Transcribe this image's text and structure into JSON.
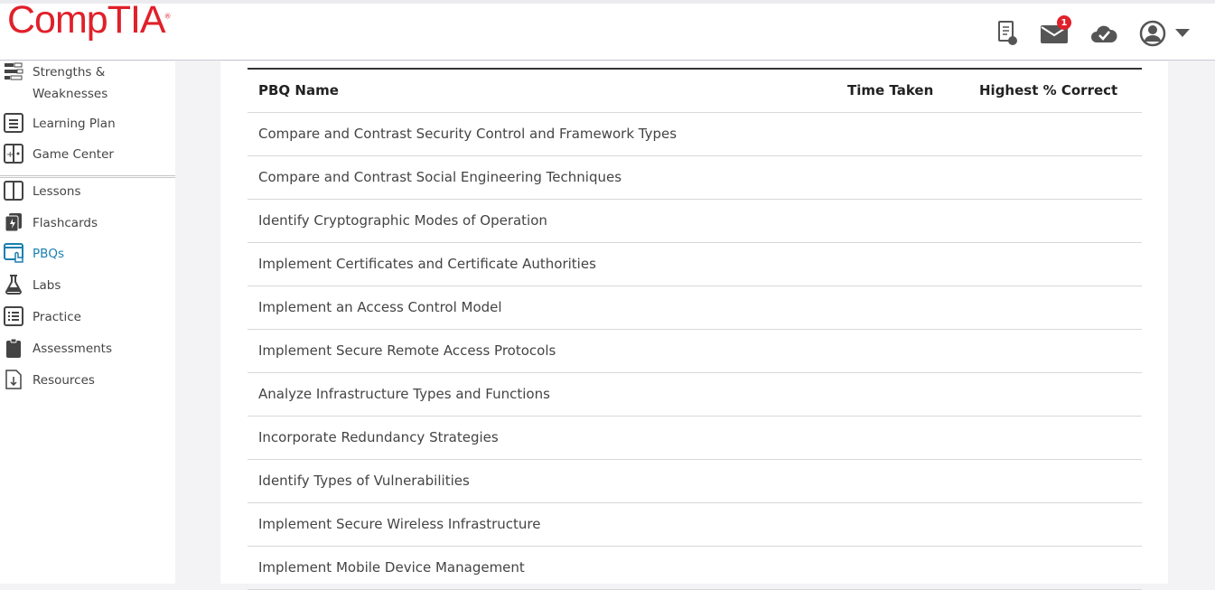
{
  "brand": {
    "logo": "CompTIA",
    "accent": "#e0202a"
  },
  "header": {
    "mail_badge": "1",
    "icons": [
      "certificate-icon",
      "mail-icon",
      "cloud-check-icon",
      "user-avatar-icon",
      "caret-down-icon"
    ]
  },
  "sidebar": {
    "items": [
      {
        "label": "Strengths &",
        "label2": "Weaknesses",
        "icon": "bars-icon"
      },
      {
        "label": "Learning Plan",
        "icon": "plan-icon"
      },
      {
        "label": "Game Center",
        "icon": "game-icon"
      },
      {
        "label": "Lessons",
        "icon": "book-icon"
      },
      {
        "label": "Flashcards",
        "icon": "flashcard-icon"
      },
      {
        "label": "PBQs",
        "icon": "pbq-icon",
        "active": true
      },
      {
        "label": "Labs",
        "icon": "flask-icon"
      },
      {
        "label": "Practice",
        "icon": "list-icon"
      },
      {
        "label": "Assessments",
        "icon": "clipboard-icon"
      },
      {
        "label": "Resources",
        "icon": "download-doc-icon"
      }
    ]
  },
  "table": {
    "headers": [
      "PBQ Name",
      "Time Taken",
      "Highest % Correct"
    ],
    "rows": [
      "Compare and Contrast Security Control and Framework Types",
      "Compare and Contrast Social Engineering Techniques",
      "Identify Cryptographic Modes of Operation",
      "Implement Certificates and Certificate Authorities",
      "Implement an Access Control Model",
      "Implement Secure Remote Access Protocols",
      "Analyze Infrastructure Types and Functions",
      "Incorporate Redundancy Strategies",
      "Identify Types of Vulnerabilities",
      "Implement Secure Wireless Infrastructure",
      "Implement Mobile Device Management"
    ]
  }
}
